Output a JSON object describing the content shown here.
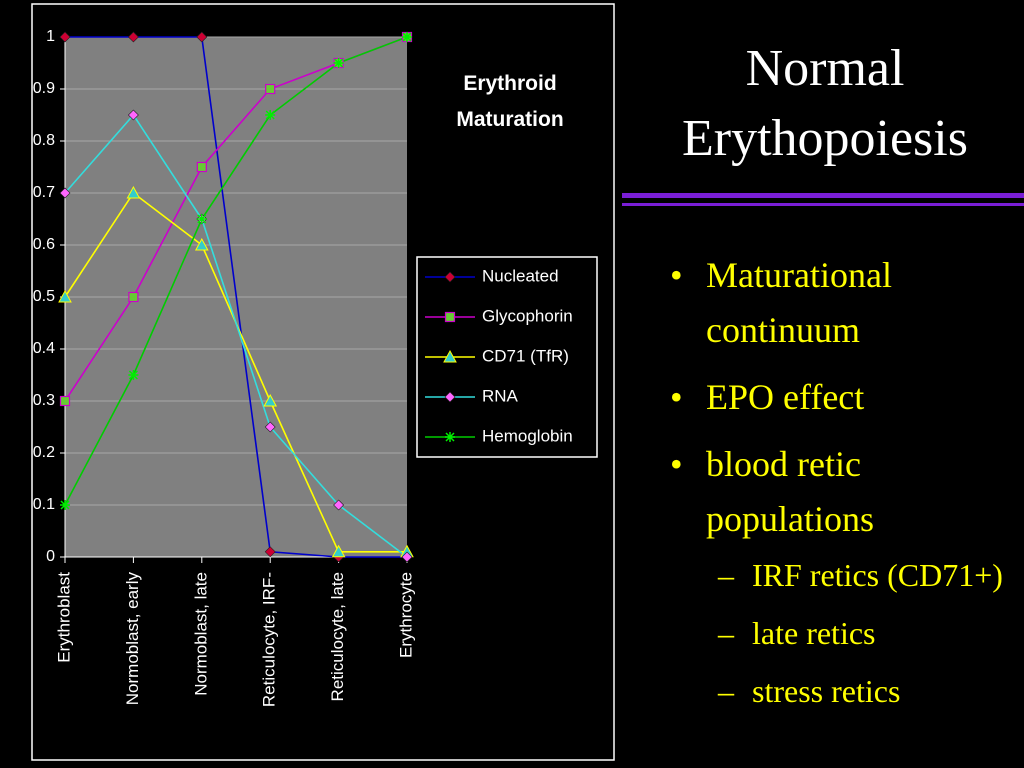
{
  "slide": {
    "title": "Normal Erythopoiesis",
    "bullets": [
      "Maturational continuum",
      "EPO effect",
      "blood retic populations"
    ],
    "sub_bullets": [
      "IRF retics (CD71+)",
      "late retics",
      "stress retics"
    ]
  },
  "chart_data": {
    "type": "line",
    "title": "Erythroid Maturation",
    "categories": [
      "Erythroblast",
      "Normoblast, early",
      "Normoblast, late",
      "Reticulocyte, IRF-",
      "Reticulocyte, late",
      "Erythrocyte"
    ],
    "series": [
      {
        "name": "Nucleated",
        "color": "#0000cc",
        "marker": "diamond",
        "marker_color": "#cc0033",
        "values": [
          1,
          1,
          1,
          0.01,
          0,
          0
        ]
      },
      {
        "name": "Glycophorin",
        "color": "#cc00cc",
        "marker": "square",
        "marker_color": "#66cc33",
        "values": [
          0.3,
          0.5,
          0.75,
          0.9,
          0.95,
          1
        ]
      },
      {
        "name": "CD71 (TfR)",
        "color": "#ffff00",
        "marker": "triangle",
        "marker_color": "#33cccc",
        "values": [
          0.5,
          0.7,
          0.6,
          0.3,
          0.01,
          0.01
        ]
      },
      {
        "name": "RNA",
        "color": "#33dddd",
        "marker": "diamond",
        "marker_color": "#ff66ff",
        "values": [
          0.7,
          0.85,
          0.65,
          0.25,
          0.1,
          0
        ]
      },
      {
        "name": "Hemoglobin",
        "color": "#00cc00",
        "marker": "asterisk",
        "marker_color": "#00ee00",
        "values": [
          0.1,
          0.35,
          0.65,
          0.85,
          0.95,
          1
        ]
      }
    ],
    "ylim": [
      0,
      1
    ],
    "yticks": [
      0,
      0.1,
      0.2,
      0.3,
      0.4,
      0.5,
      0.6,
      0.7,
      0.8,
      0.9,
      1
    ],
    "grid": true,
    "legend": "right"
  }
}
